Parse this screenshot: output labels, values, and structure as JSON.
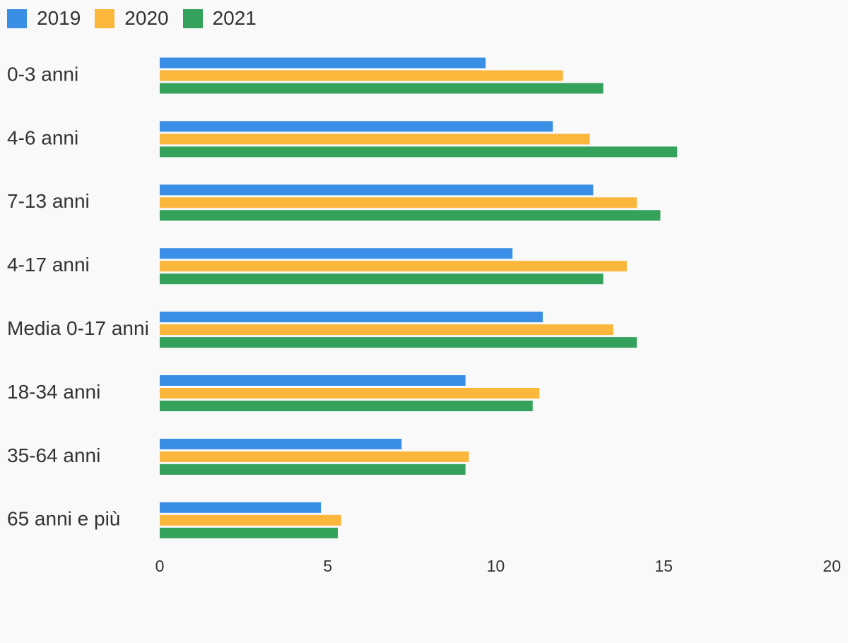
{
  "chart_data": {
    "type": "bar",
    "orientation": "horizontal",
    "categories": [
      "0-3 anni",
      "4-6 anni",
      "7-13 anni",
      "4-17 anni",
      "Media 0-17 anni",
      "18-34 anni",
      "35-64 anni",
      "65 anni e più"
    ],
    "series": [
      {
        "name": "2019",
        "color": "#3a8ee6",
        "values": [
          9.7,
          11.7,
          12.9,
          10.5,
          11.4,
          9.1,
          7.2,
          4.8
        ]
      },
      {
        "name": "2020",
        "color": "#fbb63c",
        "values": [
          12.0,
          12.8,
          14.2,
          13.9,
          13.5,
          11.3,
          9.2,
          5.4
        ]
      },
      {
        "name": "2021",
        "color": "#34a25b",
        "values": [
          13.2,
          15.4,
          14.9,
          13.2,
          14.2,
          11.1,
          9.1,
          5.3
        ]
      }
    ],
    "xlim": [
      0,
      20
    ],
    "xticks": [
      "0",
      "5",
      "10",
      "15",
      "20"
    ],
    "legend_position": "top-left",
    "grid": false,
    "title": "",
    "xlabel": "",
    "ylabel": ""
  }
}
